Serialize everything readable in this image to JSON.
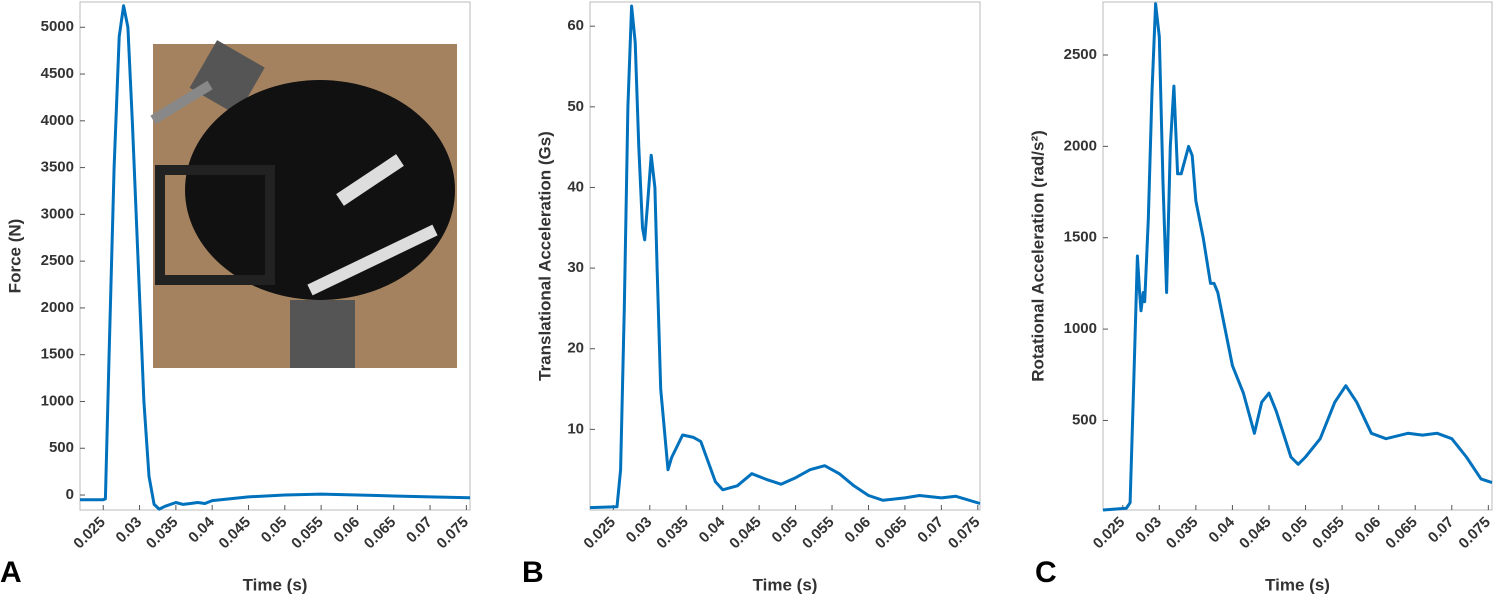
{
  "chart_data": [
    {
      "type": "line",
      "panel_label": "A",
      "ylabel": "Force (N)",
      "xlabel": "Time (s)",
      "xlim": [
        0.0218,
        0.0755
      ],
      "ylim": [
        -160,
        5270
      ],
      "xticks": [
        0.025,
        0.03,
        0.035,
        0.04,
        0.045,
        0.05,
        0.055,
        0.06,
        0.065,
        0.07,
        0.075
      ],
      "yticks": [
        0,
        500,
        1000,
        1500,
        2000,
        2500,
        3000,
        3500,
        4000,
        4500,
        5000
      ],
      "series": [
        {
          "color": "#0072BD",
          "x": [
            0.0218,
            0.025,
            0.0253,
            0.0258,
            0.0265,
            0.0272,
            0.0278,
            0.0284,
            0.029,
            0.0298,
            0.0306,
            0.0313,
            0.032,
            0.0327,
            0.0335,
            0.035,
            0.036,
            0.037,
            0.038,
            0.039,
            0.04,
            0.045,
            0.05,
            0.055,
            0.06,
            0.065,
            0.07,
            0.0755
          ],
          "values": [
            -50,
            -50,
            -40,
            1500,
            3500,
            4900,
            5230,
            5000,
            4000,
            2500,
            1000,
            200,
            -100,
            -150,
            -120,
            -80,
            -100,
            -90,
            -80,
            -90,
            -60,
            -20,
            0,
            10,
            0,
            -10,
            -20,
            -30
          ]
        }
      ]
    },
    {
      "type": "line",
      "panel_label": "B",
      "ylabel": "Translational Acceleration (Gs)",
      "xlabel": "Time (s)",
      "xlim": [
        0.0218,
        0.0753
      ],
      "ylim": [
        0,
        63
      ],
      "xticks": [
        0.025,
        0.03,
        0.035,
        0.04,
        0.045,
        0.05,
        0.055,
        0.06,
        0.065,
        0.07,
        0.075
      ],
      "yticks": [
        10,
        20,
        30,
        40,
        50,
        60
      ],
      "series": [
        {
          "color": "#0072BD",
          "x": [
            0.0218,
            0.0255,
            0.026,
            0.0265,
            0.027,
            0.0275,
            0.028,
            0.0285,
            0.029,
            0.0293,
            0.0297,
            0.0302,
            0.0307,
            0.031,
            0.0315,
            0.0325,
            0.033,
            0.0345,
            0.036,
            0.037,
            0.038,
            0.039,
            0.04,
            0.042,
            0.044,
            0.046,
            0.048,
            0.05,
            0.052,
            0.054,
            0.056,
            0.058,
            0.06,
            0.062,
            0.065,
            0.067,
            0.07,
            0.072,
            0.0753
          ],
          "values": [
            0.3,
            0.4,
            5,
            25,
            50,
            62.5,
            58,
            45,
            35,
            33.5,
            38,
            44,
            40,
            30,
            15,
            5,
            6.5,
            9.3,
            9,
            8.5,
            6,
            3.5,
            2.5,
            3,
            4.5,
            3.8,
            3.2,
            4,
            5,
            5.5,
            4.5,
            3,
            1.8,
            1.2,
            1.5,
            1.8,
            1.5,
            1.7,
            0.8
          ]
        }
      ]
    },
    {
      "type": "line",
      "panel_label": "C",
      "ylabel": "Rotational Acceleration (rad/s²)",
      "xlabel": "Time (s)",
      "xlim": [
        0.0223,
        0.0755
      ],
      "ylim": [
        10,
        2790
      ],
      "xticks": [
        0.025,
        0.03,
        0.035,
        0.04,
        0.045,
        0.05,
        0.055,
        0.06,
        0.065,
        0.07,
        0.075
      ],
      "yticks": [
        500,
        1000,
        1500,
        2000,
        2500
      ],
      "series": [
        {
          "color": "#0072BD",
          "x": [
            0.0223,
            0.0255,
            0.026,
            0.0265,
            0.027,
            0.0273,
            0.0275,
            0.0278,
            0.028,
            0.0285,
            0.029,
            0.0295,
            0.03,
            0.0305,
            0.031,
            0.0315,
            0.032,
            0.0325,
            0.033,
            0.034,
            0.0345,
            0.035,
            0.036,
            0.037,
            0.0375,
            0.038,
            0.039,
            0.04,
            0.0415,
            0.043,
            0.044,
            0.045,
            0.046,
            0.048,
            0.049,
            0.05,
            0.052,
            0.054,
            0.0555,
            0.057,
            0.059,
            0.061,
            0.064,
            0.066,
            0.068,
            0.07,
            0.072,
            0.074,
            0.0755
          ],
          "values": [
            10,
            20,
            50,
            700,
            1400,
            1200,
            1100,
            1200,
            1150,
            1600,
            2300,
            2780,
            2600,
            1800,
            1200,
            2000,
            2330,
            1850,
            1850,
            2000,
            1950,
            1700,
            1500,
            1250,
            1250,
            1200,
            1000,
            800,
            650,
            430,
            600,
            650,
            550,
            300,
            260,
            300,
            400,
            600,
            690,
            600,
            430,
            400,
            430,
            420,
            430,
            400,
            300,
            180,
            160
          ]
        }
      ]
    }
  ]
}
